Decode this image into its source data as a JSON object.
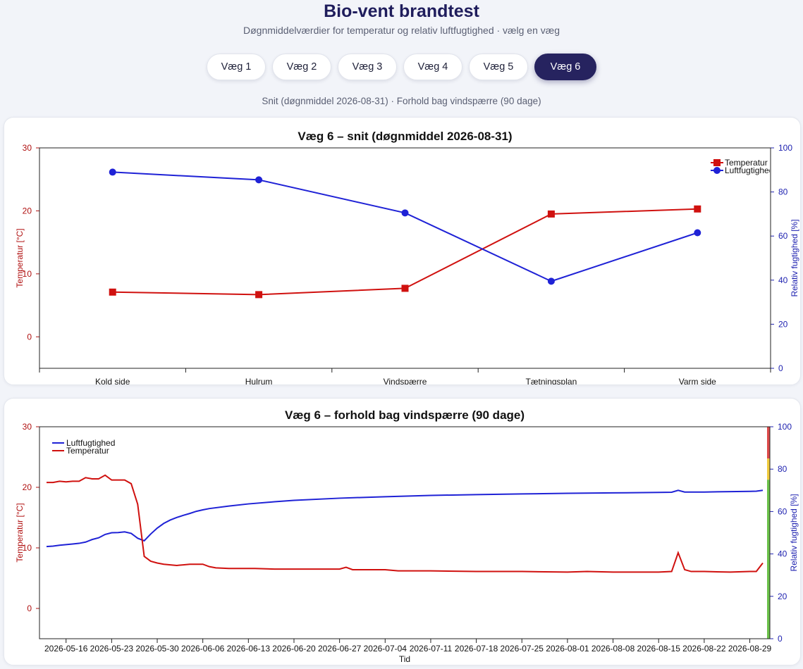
{
  "header": {
    "title": "Bio-vent brandtest",
    "subtitle": "Døgnmiddelværdier for temperatur og relativ luftfugtighed · vælg en væg"
  },
  "tabs": [
    {
      "label": "Væg 1",
      "active": false
    },
    {
      "label": "Væg 2",
      "active": false
    },
    {
      "label": "Væg 3",
      "active": false
    },
    {
      "label": "Væg 4",
      "active": false
    },
    {
      "label": "Væg 5",
      "active": false
    },
    {
      "label": "Væg 6",
      "active": true
    }
  ],
  "caption": "Snit (døgnmiddel 2026-08-31) · Forhold bag vindspærre (90 dage)",
  "colors": {
    "temperature": "#d0110f",
    "humidity": "#1f22d6",
    "accent": "#26235f",
    "band_red": "#dd4a4a",
    "band_yellow": "#f0cb3e",
    "band_green": "#6cc24a"
  },
  "chart_data": [
    {
      "type": "line",
      "title": "Væg 6 – snit (døgnmiddel 2026-08-31)",
      "categories": [
        "Kold side",
        "Hulrum",
        "Vindspærre",
        "Tætningsplan",
        "Varm side"
      ],
      "ylabel": "Temperatur [°C]",
      "y2label": "Relativ fugtighed [%]",
      "ylim": [
        -5,
        30
      ],
      "y2lim": [
        0,
        100
      ],
      "yticks": [
        "30",
        "20",
        "10",
        "0"
      ],
      "y2ticks": [
        "100",
        "80",
        "60",
        "40",
        "20",
        "0"
      ],
      "legend": {
        "position": "top-right",
        "entries": [
          "Temperatur",
          "Luftfugtighed"
        ]
      },
      "series": [
        {
          "name": "Temperatur",
          "axis": "left",
          "marker": "square",
          "values": [
            7.1,
            6.7,
            7.7,
            19.5,
            20.3
          ]
        },
        {
          "name": "Luftfugtighed",
          "axis": "right",
          "marker": "circle",
          "values": [
            89,
            85.5,
            70.5,
            39.5,
            61.5
          ]
        }
      ]
    },
    {
      "type": "line",
      "title": "Væg 6 – forhold bag vindspærre (90 dage)",
      "xlabel": "Tid",
      "ylabel": "Temperatur [°C]",
      "y2label": "Relativ fugtighed [%]",
      "ylim": [
        -5,
        30
      ],
      "y2lim": [
        0,
        100
      ],
      "yticks": [
        "30",
        "20",
        "10",
        "0"
      ],
      "y2ticks": [
        "100",
        "80",
        "60",
        "40",
        "20",
        "0"
      ],
      "xticks": [
        "2026-05-16",
        "2026-05-23",
        "2026-05-30",
        "2026-06-06",
        "2026-06-13",
        "2026-06-20",
        "2026-06-27",
        "2026-07-04",
        "2026-07-11",
        "2026-07-18",
        "2026-07-25",
        "2026-08-01",
        "2026-08-08",
        "2026-08-15",
        "2026-08-22",
        "2026-08-29"
      ],
      "xrange": [
        "2026-05-13",
        "2026-08-31"
      ],
      "legend": {
        "position": "top-left",
        "entries": [
          "Luftfugtighed",
          "Temperatur"
        ]
      },
      "humidity_bands": [
        {
          "from": 85,
          "to": 100,
          "level": "red"
        },
        {
          "from": 75,
          "to": 85,
          "level": "yellow"
        },
        {
          "from": 0,
          "to": 75,
          "level": "green"
        }
      ],
      "series": [
        {
          "name": "Temperatur",
          "axis": "left",
          "points": [
            [
              "2026-05-13",
              20.8
            ],
            [
              "2026-05-14",
              20.8
            ],
            [
              "2026-05-15",
              21.0
            ],
            [
              "2026-05-16",
              20.9
            ],
            [
              "2026-05-17",
              21.0
            ],
            [
              "2026-05-18",
              21.0
            ],
            [
              "2026-05-19",
              21.6
            ],
            [
              "2026-05-20",
              21.4
            ],
            [
              "2026-05-21",
              21.4
            ],
            [
              "2026-05-22",
              22.0
            ],
            [
              "2026-05-23",
              21.2
            ],
            [
              "2026-05-24",
              21.2
            ],
            [
              "2026-05-25",
              21.2
            ],
            [
              "2026-05-26",
              20.6
            ],
            [
              "2026-05-27",
              17.2
            ],
            [
              "2026-05-28",
              8.6
            ],
            [
              "2026-05-29",
              7.8
            ],
            [
              "2026-05-30",
              7.5
            ],
            [
              "2026-05-31",
              7.3
            ],
            [
              "2026-06-01",
              7.2
            ],
            [
              "2026-06-02",
              7.1
            ],
            [
              "2026-06-03",
              7.2
            ],
            [
              "2026-06-04",
              7.3
            ],
            [
              "2026-06-05",
              7.3
            ],
            [
              "2026-06-06",
              7.3
            ],
            [
              "2026-06-07",
              6.9
            ],
            [
              "2026-06-08",
              6.7
            ],
            [
              "2026-06-10",
              6.6
            ],
            [
              "2026-06-14",
              6.6
            ],
            [
              "2026-06-17",
              6.5
            ],
            [
              "2026-06-24",
              6.5
            ],
            [
              "2026-06-27",
              6.5
            ],
            [
              "2026-06-28",
              6.8
            ],
            [
              "2026-06-29",
              6.4
            ],
            [
              "2026-07-01",
              6.4
            ],
            [
              "2026-07-04",
              6.4
            ],
            [
              "2026-07-06",
              6.2
            ],
            [
              "2026-07-11",
              6.2
            ],
            [
              "2026-07-18",
              6.1
            ],
            [
              "2026-07-25",
              6.1
            ],
            [
              "2026-08-01",
              6.0
            ],
            [
              "2026-08-04",
              6.1
            ],
            [
              "2026-08-08",
              6.0
            ],
            [
              "2026-08-15",
              6.0
            ],
            [
              "2026-08-17",
              6.1
            ],
            [
              "2026-08-18",
              9.2
            ],
            [
              "2026-08-19",
              6.4
            ],
            [
              "2026-08-20",
              6.1
            ],
            [
              "2026-08-22",
              6.1
            ],
            [
              "2026-08-26",
              6.0
            ],
            [
              "2026-08-29",
              6.1
            ],
            [
              "2026-08-30",
              6.1
            ],
            [
              "2026-08-31",
              7.5
            ]
          ]
        },
        {
          "name": "Luftfugtighed",
          "axis": "right",
          "points": [
            [
              "2026-05-13",
              43.5
            ],
            [
              "2026-05-14",
              43.7
            ],
            [
              "2026-05-15",
              44.1
            ],
            [
              "2026-05-16",
              44.4
            ],
            [
              "2026-05-17",
              44.7
            ],
            [
              "2026-05-18",
              45.0
            ],
            [
              "2026-05-19",
              45.6
            ],
            [
              "2026-05-20",
              46.8
            ],
            [
              "2026-05-21",
              47.6
            ],
            [
              "2026-05-22",
              49.2
            ],
            [
              "2026-05-23",
              50.0
            ],
            [
              "2026-05-24",
              50.1
            ],
            [
              "2026-05-25",
              50.4
            ],
            [
              "2026-05-26",
              49.7
            ],
            [
              "2026-05-27",
              47.4
            ],
            [
              "2026-05-28",
              46.2
            ],
            [
              "2026-05-29",
              49.4
            ],
            [
              "2026-05-30",
              52.2
            ],
            [
              "2026-05-31",
              54.4
            ],
            [
              "2026-06-01",
              56.0
            ],
            [
              "2026-06-02",
              57.2
            ],
            [
              "2026-06-03",
              58.2
            ],
            [
              "2026-06-04",
              59.1
            ],
            [
              "2026-06-05",
              60.1
            ],
            [
              "2026-06-06",
              60.8
            ],
            [
              "2026-06-07",
              61.4
            ],
            [
              "2026-06-10",
              62.6
            ],
            [
              "2026-06-13",
              63.6
            ],
            [
              "2026-06-17",
              64.6
            ],
            [
              "2026-06-20",
              65.3
            ],
            [
              "2026-06-27",
              66.3
            ],
            [
              "2026-07-04",
              67.0
            ],
            [
              "2026-07-11",
              67.6
            ],
            [
              "2026-07-18",
              68.0
            ],
            [
              "2026-07-25",
              68.3
            ],
            [
              "2026-08-01",
              68.6
            ],
            [
              "2026-08-08",
              68.8
            ],
            [
              "2026-08-15",
              69.0
            ],
            [
              "2026-08-17",
              69.1
            ],
            [
              "2026-08-18",
              70.0
            ],
            [
              "2026-08-19",
              69.2
            ],
            [
              "2026-08-22",
              69.2
            ],
            [
              "2026-08-26",
              69.4
            ],
            [
              "2026-08-29",
              69.5
            ],
            [
              "2026-08-30",
              69.6
            ],
            [
              "2026-08-31",
              70.0
            ]
          ]
        }
      ]
    }
  ]
}
